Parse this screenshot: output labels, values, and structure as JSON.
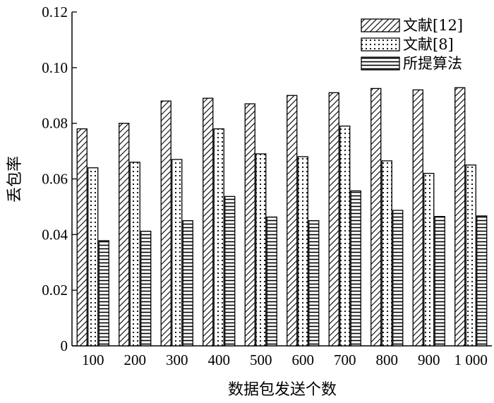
{
  "chart_data": {
    "type": "bar",
    "title": "",
    "xlabel": "数据包发送个数",
    "ylabel": "丢包率",
    "categories": [
      "100",
      "200",
      "300",
      "400",
      "500",
      "600",
      "700",
      "800",
      "900",
      "1 000"
    ],
    "ylim": [
      0,
      0.12
    ],
    "yticks": [
      "0",
      "0.02",
      "0.04",
      "0.06",
      "0.08",
      "0.10",
      "0.12"
    ],
    "yticks_values": [
      0,
      0.02,
      0.04,
      0.06,
      0.08,
      0.1,
      0.12
    ],
    "grid": false,
    "legend_position": "top-right",
    "series": [
      {
        "name": "文献[12]",
        "pattern": "diagonal-hatch",
        "values": [
          0.078,
          0.08,
          0.088,
          0.089,
          0.087,
          0.09,
          0.091,
          0.0925,
          0.092,
          0.0928
        ]
      },
      {
        "name": "文献[8]",
        "pattern": "dotted",
        "values": [
          0.064,
          0.066,
          0.067,
          0.078,
          0.069,
          0.068,
          0.079,
          0.0665,
          0.062,
          0.065
        ]
      },
      {
        "name": "所提算法",
        "pattern": "horizontal-hatch",
        "values": [
          0.0378,
          0.0412,
          0.045,
          0.0537,
          0.0463,
          0.045,
          0.0557,
          0.0487,
          0.0465,
          0.0467
        ]
      }
    ],
    "colors": {
      "bar_fill": "#ffffff",
      "stroke": "#000000"
    }
  }
}
